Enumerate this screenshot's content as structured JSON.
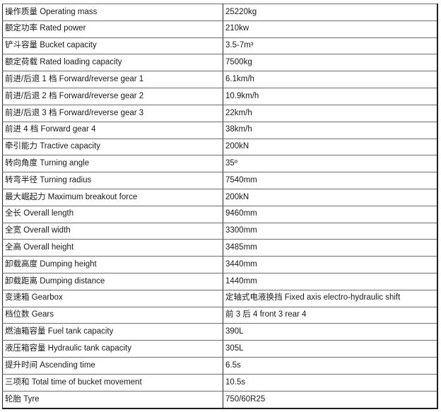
{
  "colors": {
    "background": "#ffffff",
    "text": "#1a1a1a",
    "border_outer": "#1f1f1f",
    "border_inner": "#6e6e6e",
    "border_divider": "#2a2a2a"
  },
  "table": {
    "rows": [
      {
        "label": "操作质量 Operating mass",
        "value": "25220kg"
      },
      {
        "label": "额定功率 Rated power",
        "value": "210kw"
      },
      {
        "label": "铲斗容量 Bucket capacity",
        "value": "3.5-7m³"
      },
      {
        "label": "额定荷载 Rated loading capacity",
        "value": "7500kg"
      },
      {
        "label": "前进/后退 1 档 Forward/reverse gear 1",
        "value": "6.1km/h"
      },
      {
        "label": "前进/后退 2 档 Forward/reverse gear 2",
        "value": "10.9km/h"
      },
      {
        "label": "前进/后退 3 档 Forward/reverse gear 3",
        "value": "22km/h"
      },
      {
        "label": "前进 4 档 Forward gear 4",
        "value": "38km/h"
      },
      {
        "label": "牵引能力 Tractive capacity",
        "value": "200kN"
      },
      {
        "label": "转向角度 Turning angle",
        "value": "35º"
      },
      {
        "label": "转弯半径 Turning radius",
        "value": "7540mm"
      },
      {
        "label": "最大崛起力 Maximum breakout force",
        "value": "200kN"
      },
      {
        "label": "全长 Overall length",
        "value": "9460mm"
      },
      {
        "label": "全宽 Overall width",
        "value": "3300mm"
      },
      {
        "label": "全高 Overall height",
        "value": "3485mm"
      },
      {
        "label": "卸载高度 Dumping height",
        "value": "3440mm"
      },
      {
        "label": "卸载距离 Dumping distance",
        "value": "1440mm"
      },
      {
        "label": "变速箱 Gearbox",
        "value": "定轴式电液换挡 Fixed axis electro-hydraulic shift"
      },
      {
        "label": "档位数 Gears",
        "value": "前 3 后 4 front 3 rear 4"
      },
      {
        "label": "燃油箱容量 Fuel tank capacity",
        "value": "390L"
      },
      {
        "label": "液压箱容量 Hydraulic tank capacity",
        "value": "305L"
      },
      {
        "label": "提升时间 Ascending time",
        "value": "6.5s"
      },
      {
        "label": "三项和 Total time of bucket movement",
        "value": "10.5s"
      },
      {
        "label": "轮胎 Tyre",
        "value": "750/60R25"
      }
    ]
  }
}
